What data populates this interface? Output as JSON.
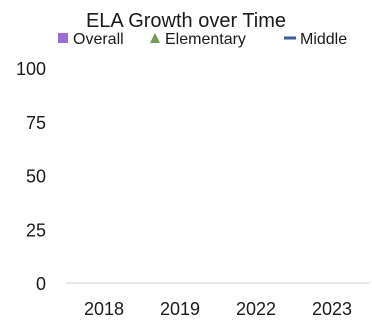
{
  "chart_data": {
    "type": "line",
    "title": "ELA Growth over Time",
    "xlabel": "",
    "ylabel": "",
    "categories": [
      "2018",
      "2019",
      "2022",
      "2023"
    ],
    "ylim": [
      0,
      100
    ],
    "yticks": [
      "0",
      "25",
      "50",
      "75",
      "100"
    ],
    "grid": false,
    "legend_position": "top",
    "series": [
      {
        "name": "Overall",
        "marker": "square",
        "color": "#9b6bd6",
        "values": [
          null,
          null,
          null,
          null
        ]
      },
      {
        "name": "Elementary",
        "marker": "triangle",
        "color": "#6f9a4f",
        "values": [
          null,
          null,
          null,
          null
        ]
      },
      {
        "name": "Middle",
        "marker": "dash",
        "color": "#3a5a9c",
        "values": [
          null,
          null,
          null,
          null
        ]
      }
    ]
  }
}
